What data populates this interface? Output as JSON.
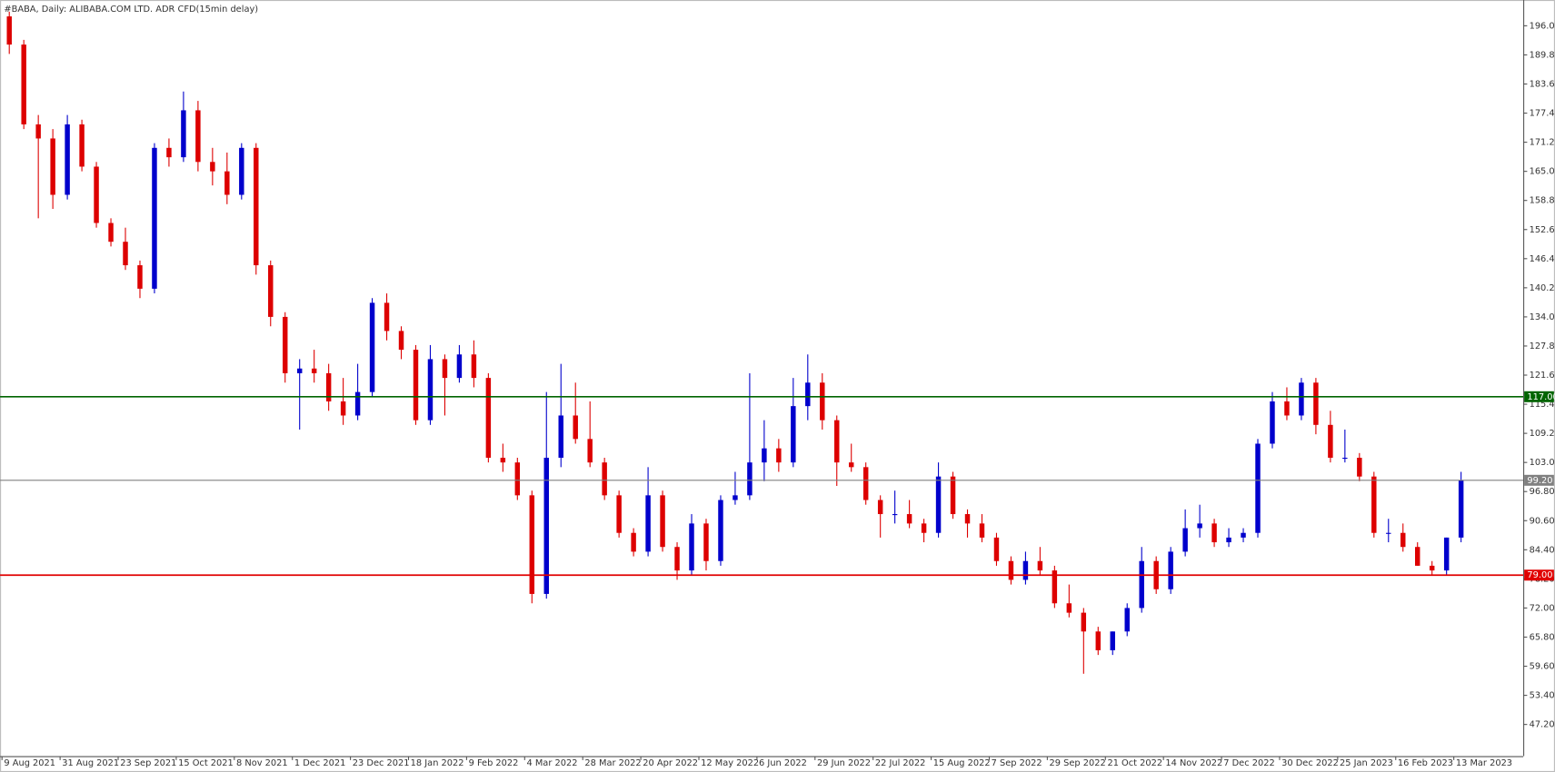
{
  "chart_data": {
    "type": "candlestick",
    "title": "#BABA, Daily:  ALIBABA.COM LTD. ADR CFD(15min delay)",
    "up_color": "#0000cc",
    "down_color": "#dd0000",
    "ylim": [
      40.45,
      201.49
    ],
    "yticks": [
      {
        "value": 196,
        "label": "196.00"
      },
      {
        "value": 189.8,
        "label": "189.80"
      },
      {
        "value": 183.6,
        "label": "183.60"
      },
      {
        "value": 177.4,
        "label": "177.40"
      },
      {
        "value": 171.2,
        "label": "171.20"
      },
      {
        "value": 165,
        "label": "165.00"
      },
      {
        "value": 158.8,
        "label": "158.80"
      },
      {
        "value": 152.6,
        "label": "152.60"
      },
      {
        "value": 146.4,
        "label": "146.40"
      },
      {
        "value": 140.2,
        "label": "140.20"
      },
      {
        "value": 134,
        "label": "134.00"
      },
      {
        "value": 127.8,
        "label": "127.80"
      },
      {
        "value": 121.6,
        "label": "121.60"
      },
      {
        "value": 115.4,
        "label": "115.40"
      },
      {
        "value": 109.2,
        "label": "109.20"
      },
      {
        "value": 103,
        "label": "103.00"
      },
      {
        "value": 96.8,
        "label": "96.80"
      },
      {
        "value": 90.6,
        "label": "90.60"
      },
      {
        "value": 84.4,
        "label": "84.40"
      },
      {
        "value": 78.2,
        "label": "78.20"
      },
      {
        "value": 72,
        "label": "72.00"
      },
      {
        "value": 65.8,
        "label": "65.80"
      },
      {
        "value": 59.6,
        "label": "59.60"
      },
      {
        "value": 53.4,
        "label": "53.40"
      },
      {
        "value": 47.2,
        "label": "47.20"
      }
    ],
    "hlines": [
      {
        "value": 117,
        "label": "117.00",
        "color": "#006400"
      },
      {
        "value": 99.2,
        "label": "99.20",
        "color": "#808080"
      },
      {
        "value": 79,
        "label": "79.00",
        "color": "#e00000"
      }
    ],
    "categories": [
      "9 Aug 2021",
      null,
      null,
      null,
      "31 Aug 2021",
      null,
      null,
      null,
      "23 Sep 2021",
      null,
      null,
      null,
      "15 Oct 2021",
      null,
      null,
      null,
      "8 Nov 2021",
      null,
      null,
      null,
      "1 Dec 2021",
      null,
      null,
      null,
      "23 Dec 2021",
      null,
      null,
      null,
      "18 Jan 2022",
      null,
      null,
      null,
      "9 Feb 2022",
      null,
      null,
      null,
      "4 Mar 2022",
      null,
      null,
      null,
      "28 Mar 2022",
      null,
      null,
      null,
      "20 Apr 2022",
      null,
      null,
      null,
      "12 May 2022",
      null,
      null,
      null,
      "6 Jun 2022",
      null,
      null,
      null,
      "29 Jun 2022",
      null,
      null,
      null,
      "22 Jul 2022",
      null,
      null,
      null,
      "15 Aug 2022",
      null,
      null,
      null,
      "7 Sep 2022",
      null,
      null,
      null,
      "29 Sep 2022",
      null,
      null,
      null,
      "21 Oct 2022",
      null,
      null,
      null,
      "14 Nov 2022",
      null,
      null,
      null,
      "7 Dec 2022",
      null,
      null,
      null,
      "30 Dec 2022",
      null,
      null,
      null,
      "25 Jan 2023",
      null,
      null,
      null,
      "16 Feb 2023",
      null,
      null,
      null,
      "13 Mar 2023"
    ],
    "open": [
      198,
      192,
      175,
      172,
      160,
      175,
      166,
      154,
      150,
      145,
      140,
      170,
      168,
      178,
      167,
      165,
      160,
      170,
      145,
      134,
      122,
      123,
      122,
      116,
      113,
      118,
      137,
      131,
      127,
      112,
      125,
      121,
      126,
      121,
      104,
      103,
      96,
      75,
      104,
      113,
      108,
      103,
      96,
      88,
      84,
      96,
      85,
      80,
      90,
      82,
      95,
      96,
      103,
      106,
      103,
      115,
      120,
      112,
      103,
      102,
      95,
      92,
      92,
      90,
      88,
      100,
      92,
      90,
      87,
      82,
      78,
      82,
      80,
      73,
      71,
      67,
      63,
      67,
      72,
      82,
      76,
      84,
      89,
      90,
      86,
      87,
      88,
      107,
      116,
      113,
      120,
      111,
      104,
      104,
      100,
      88,
      88,
      85,
      81,
      80,
      87
    ],
    "high": [
      199,
      193,
      177,
      174,
      177,
      176,
      167,
      155,
      153,
      146,
      171,
      172,
      182,
      180,
      170,
      169,
      171,
      171,
      146,
      135,
      125,
      127,
      124,
      121,
      124,
      138,
      139,
      132,
      128,
      128,
      126,
      128,
      129,
      122,
      107,
      104,
      97,
      118,
      124,
      120,
      116,
      104,
      97,
      89,
      102,
      97,
      86,
      92,
      91,
      96,
      101,
      122,
      112,
      108,
      121,
      126,
      122,
      113,
      107,
      103,
      96,
      97,
      95,
      91,
      103,
      101,
      93,
      92,
      88,
      83,
      84,
      85,
      81,
      77,
      72,
      68,
      67,
      73,
      85,
      83,
      85,
      93,
      94,
      91,
      89,
      89,
      108,
      118,
      119,
      121,
      121,
      114,
      110,
      105,
      101,
      91,
      90,
      86,
      82,
      87,
      101
    ],
    "low": [
      190,
      174,
      155,
      157,
      159,
      165,
      153,
      149,
      144,
      138,
      139,
      166,
      167,
      165,
      162,
      158,
      159,
      143,
      132,
      120,
      110,
      120,
      114,
      111,
      112,
      117,
      129,
      125,
      111,
      111,
      113,
      120,
      119,
      103,
      101,
      95,
      73,
      74,
      102,
      107,
      102,
      95,
      87,
      83,
      83,
      84,
      78,
      79,
      80,
      81,
      94,
      95,
      99,
      101,
      102,
      112,
      110,
      98,
      101,
      94,
      87,
      90,
      89,
      86,
      87,
      91,
      87,
      86,
      81,
      77,
      77,
      79,
      72,
      70,
      58,
      62,
      62,
      66,
      71,
      75,
      75,
      83,
      87,
      85,
      85,
      86,
      87,
      106,
      112,
      112,
      109,
      103,
      103,
      99,
      87,
      86,
      84,
      81,
      79,
      79,
      86
    ],
    "close": [
      192,
      175,
      172,
      160,
      175,
      166,
      154,
      150,
      145,
      140,
      170,
      168,
      178,
      167,
      165,
      160,
      170,
      145,
      134,
      122,
      123,
      122,
      116,
      113,
      118,
      137,
      131,
      127,
      112,
      125,
      121,
      126,
      121,
      104,
      103,
      96,
      75,
      104,
      113,
      108,
      103,
      96,
      88,
      84,
      96,
      85,
      80,
      90,
      82,
      95,
      96,
      103,
      106,
      103,
      115,
      120,
      112,
      103,
      102,
      95,
      92,
      92,
      90,
      88,
      100,
      92,
      90,
      87,
      82,
      78,
      82,
      80,
      73,
      71,
      67,
      63,
      67,
      72,
      82,
      76,
      84,
      89,
      90,
      86,
      87,
      88,
      107,
      116,
      113,
      120,
      111,
      104,
      104,
      100,
      88,
      88,
      85,
      81,
      80,
      87,
      99.2
    ]
  }
}
